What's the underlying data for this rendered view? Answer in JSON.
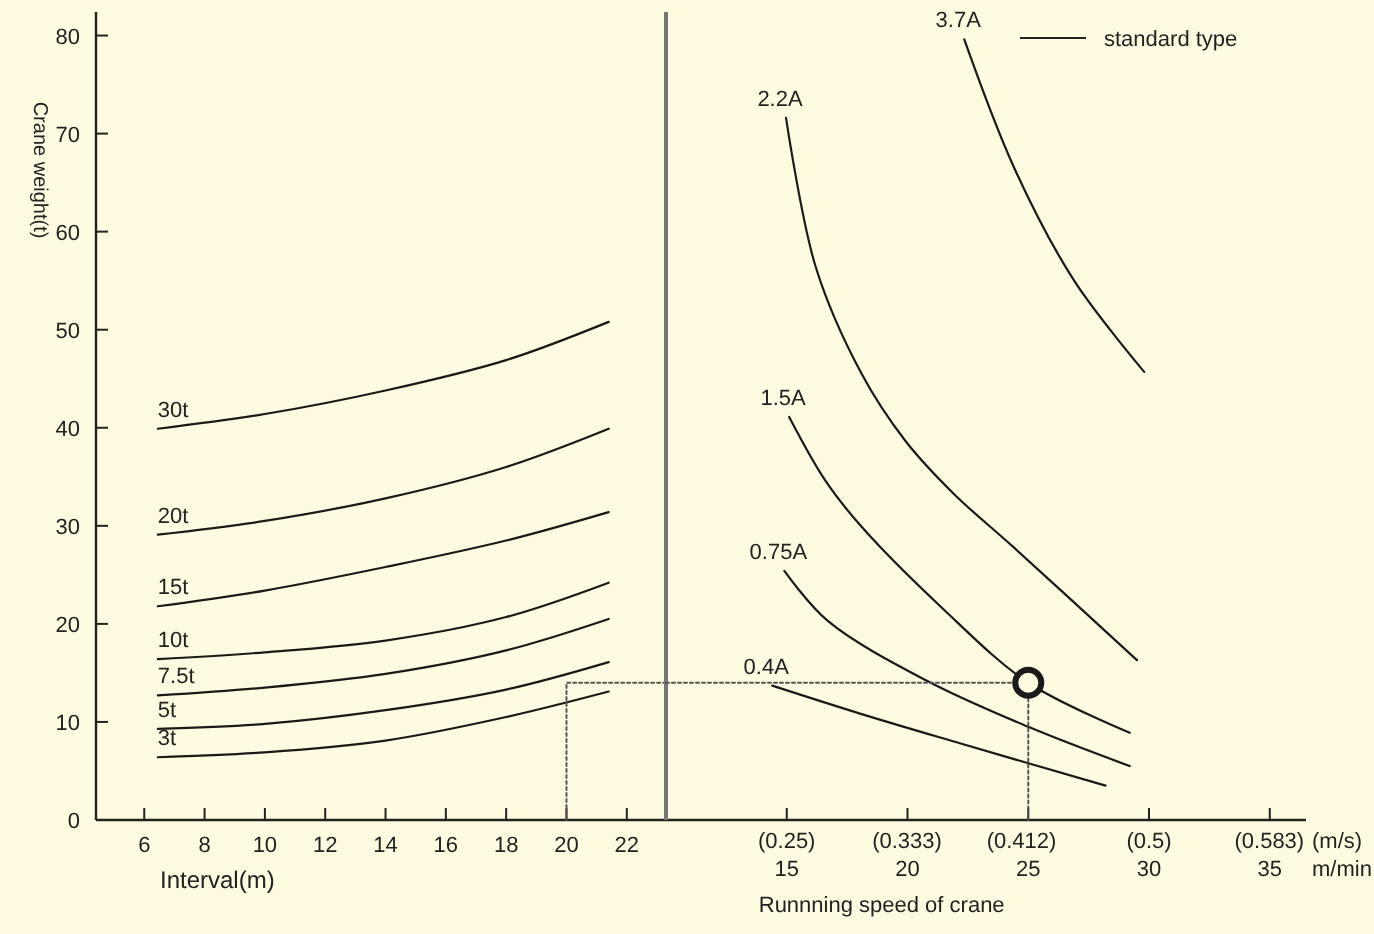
{
  "chart_data": [
    {
      "type": "line",
      "ylabel": "Crane weight(t)",
      "xlabel": "Interval(m)",
      "line_style": "solid",
      "xlim": [
        4.4,
        23.3
      ],
      "xticks": [
        6,
        8,
        10,
        12,
        14,
        16,
        18,
        20,
        22
      ],
      "ylim": [
        0,
        82.4
      ],
      "yticks": [
        0,
        10,
        20,
        30,
        40,
        50,
        60,
        70,
        80
      ],
      "series": [
        {
          "name": "30t",
          "color": "#1a1a1a",
          "x": [
            6.45,
            10,
            14,
            18,
            21.4
          ],
          "values": [
            39.9,
            41.4,
            43.8,
            46.9,
            50.8
          ]
        },
        {
          "name": "20t",
          "color": "#1a1a1a",
          "x": [
            6.45,
            10,
            14,
            18,
            21.4
          ],
          "values": [
            29.1,
            30.5,
            32.8,
            36,
            39.9
          ]
        },
        {
          "name": "15t",
          "color": "#1a1a1a",
          "x": [
            6.45,
            10,
            14,
            18,
            21.4
          ],
          "values": [
            21.8,
            23.4,
            25.8,
            28.5,
            31.4
          ]
        },
        {
          "name": "10t",
          "color": "#1a1a1a",
          "x": [
            6.45,
            10,
            14,
            18,
            21.4
          ],
          "values": [
            16.4,
            17.1,
            18.3,
            20.7,
            24.2
          ]
        },
        {
          "name": "7.5t",
          "color": "#1a1a1a",
          "x": [
            6.45,
            10,
            14,
            18,
            21.4
          ],
          "values": [
            12.7,
            13.5,
            14.9,
            17.3,
            20.5
          ]
        },
        {
          "name": "5t",
          "color": "#1a1a1a",
          "x": [
            6.45,
            10,
            14,
            18,
            21.4
          ],
          "values": [
            9.3,
            9.8,
            11.2,
            13.3,
            16.1
          ]
        },
        {
          "name": "3t",
          "color": "#1a1a1a",
          "x": [
            6.45,
            10,
            14,
            18,
            21.4
          ],
          "values": [
            6.4,
            6.9,
            8.1,
            10.5,
            13.1
          ]
        },
        {
          "type": "line",
          "line_style": "dotted",
          "color": "#555555",
          "x": [
            20,
            20,
            23.3
          ],
          "values": [
            0,
            14,
            14
          ]
        }
      ]
    },
    {
      "type": "line",
      "xlabel": "Runnning speed of crane",
      "x2label": "(m/s)",
      "annotations": [
        "m/min",
        "standard type"
      ],
      "line_style": "solid",
      "xlim": [
        10,
        36.5
      ],
      "xticks": [
        15,
        20,
        25,
        30,
        35
      ],
      "x2lim": [
        0.1667,
        0.6083
      ],
      "x2ticks": [
        {
          "value": 0.25,
          "label": "(0.25)"
        },
        {
          "value": 0.333,
          "label": "(0.333)"
        },
        {
          "value": 0.412,
          "label": "(0.412)"
        },
        {
          "value": 0.5,
          "label": "(0.5)"
        },
        {
          "value": 0.583,
          "label": "(0.583)"
        }
      ],
      "ylim": [
        0,
        82.4
      ],
      "tick_labels": "x",
      "series": [
        {
          "name": "3.7A",
          "color": "#1a1a1a",
          "x": [
            22.35,
            24.4,
            26.9,
            29.8
          ],
          "values": [
            79.6,
            66.6,
            55,
            45.7
          ]
        },
        {
          "name": "2.2A",
          "color": "#1a1a1a",
          "x": [
            14.97,
            16.2,
            18.1,
            19.9,
            21.9,
            24.4,
            29.5
          ],
          "values": [
            71.6,
            56.4,
            45.5,
            38.7,
            33.3,
            27.8,
            16.3
          ]
        },
        {
          "name": "1.5A",
          "color": "#1a1a1a",
          "x": [
            15.1,
            16.6,
            18.1,
            21.4,
            25,
            29.2
          ],
          "values": [
            41.1,
            34.6,
            29.9,
            21.7,
            14,
            8.9
          ]
        },
        {
          "name": "0.75A",
          "color": "#1a1a1a",
          "x": [
            14.9,
            16.7,
            20.8,
            25,
            29.2
          ],
          "values": [
            25.4,
            20.3,
            14.2,
            9.5,
            5.5
          ]
        },
        {
          "name": "0.4A",
          "color": "#1a1a1a",
          "x": [
            14.4,
            18.1,
            22.2,
            28.2
          ],
          "values": [
            13.7,
            10.8,
            7.8,
            3.5
          ]
        },
        {
          "type": "line",
          "line_style": "dotted",
          "color": "#555555",
          "x": [
            10,
            25,
            25
          ],
          "values": [
            14,
            14,
            0
          ]
        },
        {
          "type": "scatter",
          "marker": "circle",
          "color": "#1a1a1a",
          "x": [
            25
          ],
          "values": [
            14
          ]
        }
      ]
    }
  ]
}
